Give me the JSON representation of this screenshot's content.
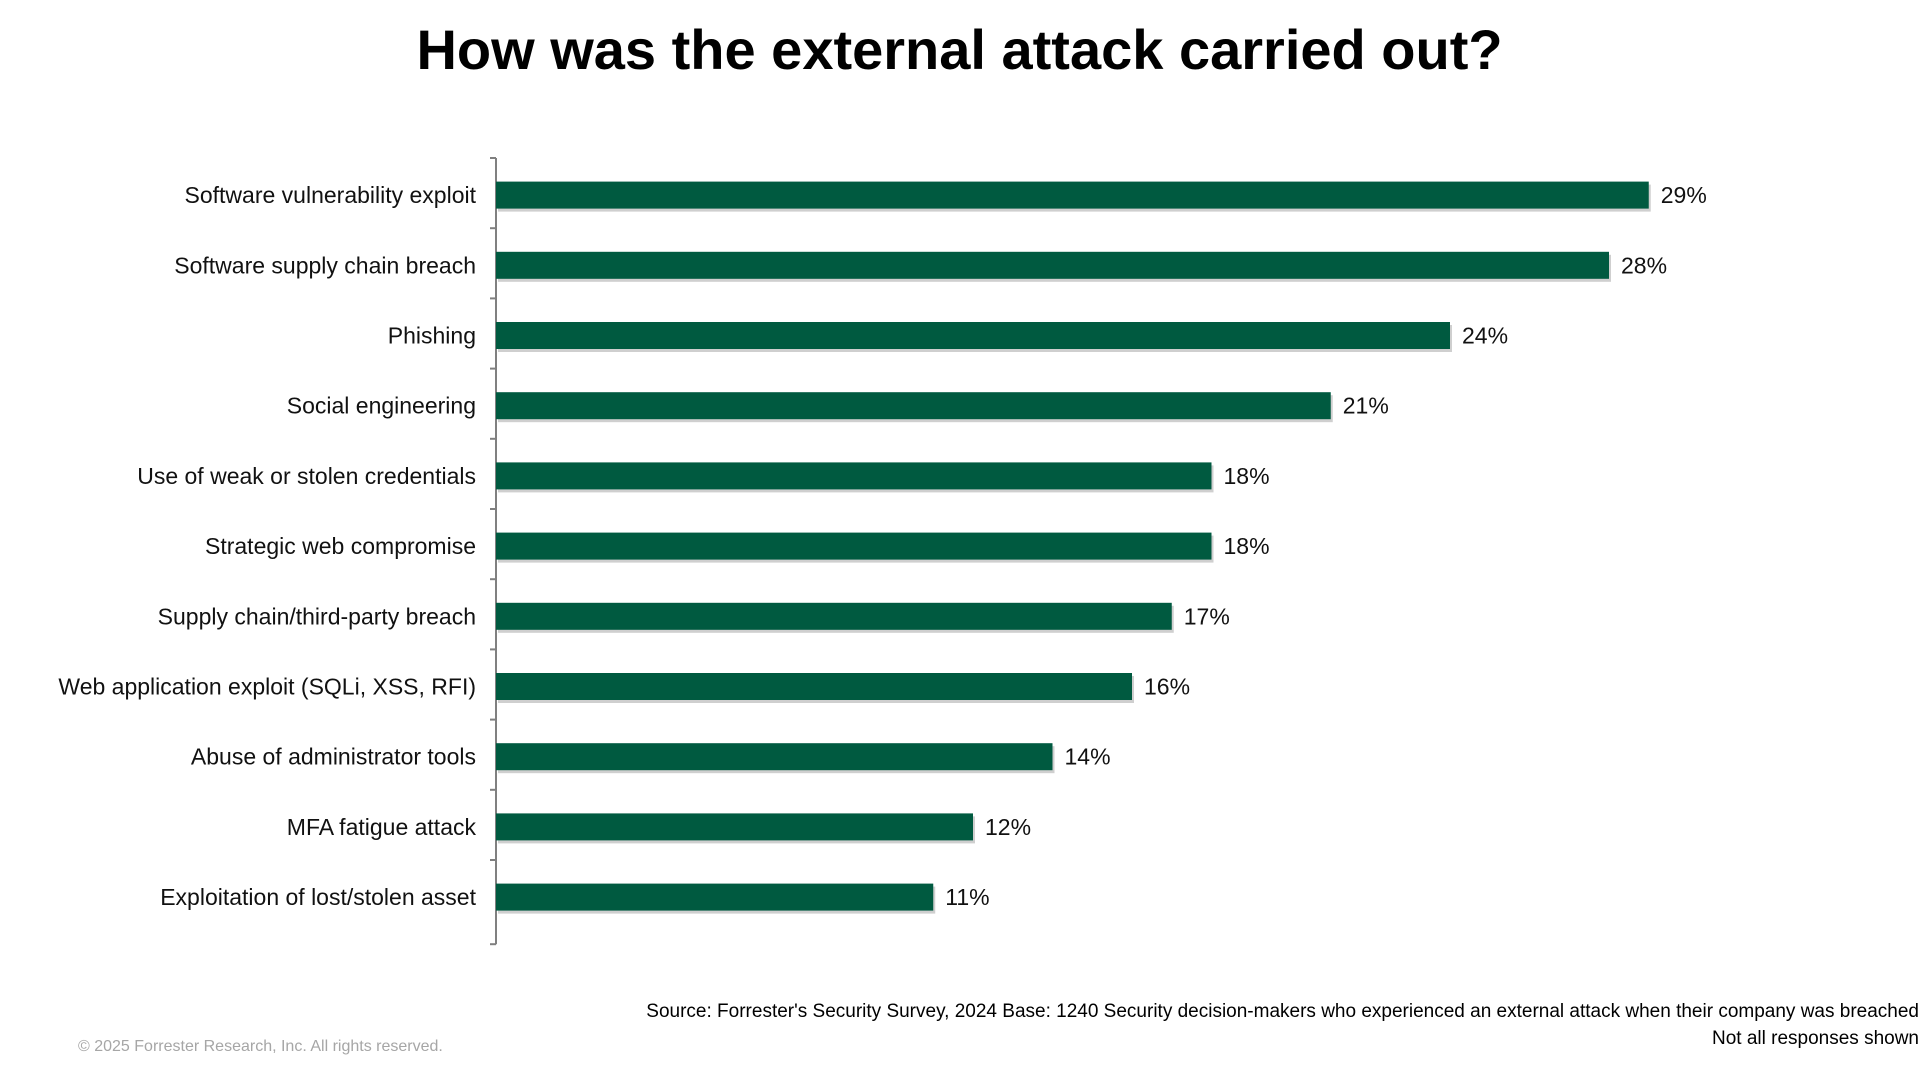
{
  "title": "How was the external attack carried out?",
  "chart_data": {
    "type": "bar",
    "orientation": "horizontal",
    "categories": [
      "Software vulnerability exploit",
      "Software supply chain breach",
      "Phishing",
      "Social engineering",
      "Use of weak or stolen credentials",
      "Strategic web compromise",
      "Supply chain/third-party breach",
      "Web application exploit (SQLi, XSS, RFI)",
      "Abuse of administrator tools",
      "MFA fatigue attack",
      "Exploitation of lost/stolen asset"
    ],
    "values": [
      29,
      28,
      24,
      21,
      18,
      18,
      17,
      16,
      14,
      12,
      11
    ],
    "value_labels": [
      "29%",
      "28%",
      "24%",
      "21%",
      "18%",
      "18%",
      "17%",
      "16%",
      "14%",
      "12%",
      "11%"
    ],
    "unit": "%",
    "bar_color": "#005A40",
    "xlim": [
      0,
      35
    ],
    "grid": false,
    "legend": "none"
  },
  "footer": {
    "source_line1": "Source: Forrester's Security Survey, 2024 Base: 1240 Security decision-makers  who experienced an external attack when their company was breached",
    "source_line2": "Not all responses shown",
    "copyright": "© 2025 Forrester Research, Inc. All rights reserved."
  }
}
